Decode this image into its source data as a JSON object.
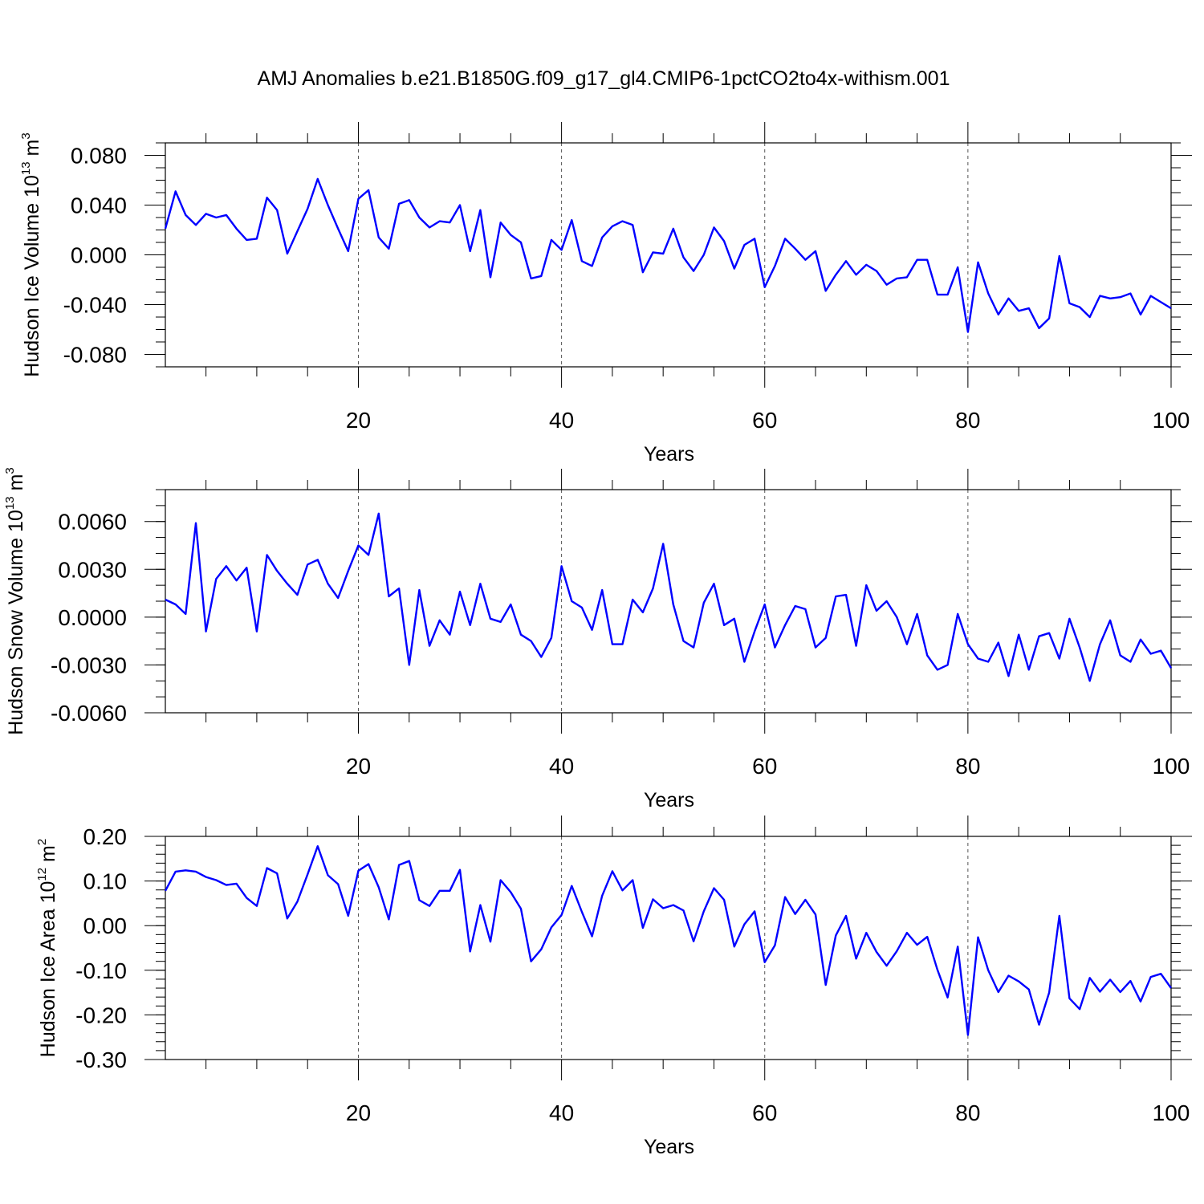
{
  "title": "AMJ Anomalies b.e21.B1850G.f09_g17_gl4.CMIP6-1pctCO2to4x-withism.001",
  "colors": {
    "series": "#0000ff",
    "frame": "#000000"
  },
  "chart_data": [
    {
      "type": "line",
      "ylabel": "Hudson Ice Volume 10",
      "ylabel_exp": "13",
      "ylabel_unit": " m",
      "ylabel_unit_exp": "3",
      "xlabel": "Years",
      "xlim": [
        1,
        100
      ],
      "ylim": [
        -0.09,
        0.09
      ],
      "x_ticks": [
        20,
        40,
        60,
        80,
        100
      ],
      "x_tick_labels": [
        "20",
        "40",
        "60",
        "80",
        "100"
      ],
      "y_ticks": [
        0.08,
        0.04,
        0.0,
        -0.04,
        -0.08
      ],
      "y_tick_labels": [
        "0.080",
        "0.040",
        "0.000",
        "-0.040",
        "-0.080"
      ],
      "y_minor_step": 0.01,
      "grid_x_dashed": [
        20,
        40,
        60,
        80
      ],
      "x": [
        1,
        2,
        3,
        4,
        5,
        6,
        7,
        8,
        9,
        10,
        11,
        12,
        13,
        14,
        15,
        16,
        17,
        18,
        19,
        20,
        21,
        22,
        23,
        24,
        25,
        26,
        27,
        28,
        29,
        30,
        31,
        32,
        33,
        34,
        35,
        36,
        37,
        38,
        39,
        40,
        41,
        42,
        43,
        44,
        45,
        46,
        47,
        48,
        49,
        50,
        51,
        52,
        53,
        54,
        55,
        56,
        57,
        58,
        59,
        60,
        61,
        62,
        63,
        64,
        65,
        66,
        67,
        68,
        69,
        70,
        71,
        72,
        73,
        74,
        75,
        76,
        77,
        78,
        79,
        80,
        81,
        82,
        83,
        84,
        85,
        86,
        87,
        88,
        89,
        90,
        91,
        92,
        93,
        94,
        95,
        96,
        97,
        98,
        99,
        100
      ],
      "values": [
        0.021,
        0.051,
        0.032,
        0.024,
        0.033,
        0.03,
        0.032,
        0.021,
        0.012,
        0.013,
        0.046,
        0.036,
        0.001,
        0.019,
        0.037,
        0.061,
        0.04,
        0.021,
        0.003,
        0.045,
        0.052,
        0.014,
        0.005,
        0.041,
        0.044,
        0.03,
        0.022,
        0.027,
        0.026,
        0.04,
        0.003,
        0.036,
        -0.018,
        0.026,
        0.016,
        0.01,
        -0.019,
        -0.017,
        0.012,
        0.004,
        0.028,
        -0.005,
        -0.009,
        0.014,
        0.023,
        0.027,
        0.024,
        -0.014,
        0.002,
        0.001,
        0.021,
        -0.002,
        -0.013,
        0.0,
        0.022,
        0.011,
        -0.011,
        0.008,
        0.013,
        -0.026,
        -0.009,
        0.013,
        0.005,
        -0.004,
        0.003,
        -0.029,
        -0.016,
        -0.005,
        -0.016,
        -0.008,
        -0.013,
        -0.024,
        -0.019,
        -0.018,
        -0.004,
        -0.004,
        -0.032,
        -0.032,
        -0.01,
        -0.062,
        -0.006,
        -0.031,
        -0.048,
        -0.035,
        -0.045,
        -0.043,
        -0.059,
        -0.051,
        -0.001,
        -0.039,
        -0.042,
        -0.05,
        -0.033,
        -0.035,
        -0.034,
        -0.031,
        -0.048,
        -0.033,
        -0.038,
        -0.043
      ]
    },
    {
      "type": "line",
      "ylabel": "Hudson Snow Volume 10",
      "ylabel_exp": "13",
      "ylabel_unit": " m",
      "ylabel_unit_exp": "3",
      "xlabel": "Years",
      "xlim": [
        1,
        100
      ],
      "ylim": [
        -0.006,
        0.008
      ],
      "x_ticks": [
        20,
        40,
        60,
        80,
        100
      ],
      "x_tick_labels": [
        "20",
        "40",
        "60",
        "80",
        "100"
      ],
      "y_ticks": [
        0.006,
        0.003,
        0.0,
        -0.003,
        -0.006
      ],
      "y_tick_labels": [
        "0.0060",
        "0.0030",
        "0.0000",
        "-0.0030",
        "-0.0060"
      ],
      "y_minor_step": 0.001,
      "grid_x_dashed": [
        20,
        40,
        60,
        80
      ],
      "x": [
        1,
        2,
        3,
        4,
        5,
        6,
        7,
        8,
        9,
        10,
        11,
        12,
        13,
        14,
        15,
        16,
        17,
        18,
        19,
        20,
        21,
        22,
        23,
        24,
        25,
        26,
        27,
        28,
        29,
        30,
        31,
        32,
        33,
        34,
        35,
        36,
        37,
        38,
        39,
        40,
        41,
        42,
        43,
        44,
        45,
        46,
        47,
        48,
        49,
        50,
        51,
        52,
        53,
        54,
        55,
        56,
        57,
        58,
        59,
        60,
        61,
        62,
        63,
        64,
        65,
        66,
        67,
        68,
        69,
        70,
        71,
        72,
        73,
        74,
        75,
        76,
        77,
        78,
        79,
        80,
        81,
        82,
        83,
        84,
        85,
        86,
        87,
        88,
        89,
        90,
        91,
        92,
        93,
        94,
        95,
        96,
        97,
        98,
        99,
        100
      ],
      "values": [
        0.0011,
        0.0008,
        0.0002,
        0.0059,
        -0.0009,
        0.0024,
        0.0032,
        0.0023,
        0.0031,
        -0.0009,
        0.0039,
        0.0029,
        0.0021,
        0.0014,
        0.0033,
        0.0036,
        0.0021,
        0.0012,
        0.0029,
        0.0045,
        0.0039,
        0.0065,
        0.0013,
        0.0018,
        -0.003,
        0.0017,
        -0.0018,
        -0.0002,
        -0.0011,
        0.0016,
        -0.0005,
        0.0021,
        -0.0001,
        -0.0003,
        0.0008,
        -0.0011,
        -0.0015,
        -0.0025,
        -0.0013,
        0.0032,
        0.001,
        0.0006,
        -0.0008,
        0.0017,
        -0.0017,
        -0.0017,
        0.0011,
        0.0003,
        0.0018,
        0.0046,
        0.0008,
        -0.0015,
        -0.0019,
        0.0009,
        0.0021,
        -0.0005,
        -0.0001,
        -0.0028,
        -0.0009,
        0.0008,
        -0.0019,
        -0.0005,
        0.0007,
        0.0005,
        -0.0019,
        -0.0013,
        0.0013,
        0.0014,
        -0.0018,
        0.002,
        0.0004,
        0.001,
        0.0,
        -0.0017,
        0.0002,
        -0.0024,
        -0.0033,
        -0.003,
        0.0002,
        -0.0017,
        -0.0026,
        -0.0028,
        -0.0016,
        -0.0037,
        -0.0011,
        -0.0033,
        -0.0012,
        -0.001,
        -0.0026,
        -0.0001,
        -0.0019,
        -0.004,
        -0.0017,
        -0.0002,
        -0.0024,
        -0.0028,
        -0.0014,
        -0.0023,
        -0.0021,
        -0.0032
      ]
    },
    {
      "type": "line",
      "ylabel": "Hudson Ice Area 10",
      "ylabel_exp": "12",
      "ylabel_unit": " m",
      "ylabel_unit_exp": "2",
      "xlabel": "Years",
      "xlim": [
        1,
        100
      ],
      "ylim": [
        -0.3,
        0.2
      ],
      "x_ticks": [
        20,
        40,
        60,
        80,
        100
      ],
      "x_tick_labels": [
        "20",
        "40",
        "60",
        "80",
        "100"
      ],
      "y_ticks": [
        0.2,
        0.1,
        0.0,
        -0.1,
        -0.2,
        -0.3
      ],
      "y_tick_labels": [
        "0.20",
        "0.10",
        "0.00",
        "-0.10",
        "-0.20",
        "-0.30"
      ],
      "y_minor_step": 0.02,
      "grid_x_dashed": [
        20,
        40,
        60,
        80
      ],
      "x": [
        1,
        2,
        3,
        4,
        5,
        6,
        7,
        8,
        9,
        10,
        11,
        12,
        13,
        14,
        15,
        16,
        17,
        18,
        19,
        20,
        21,
        22,
        23,
        24,
        25,
        26,
        27,
        28,
        29,
        30,
        31,
        32,
        33,
        34,
        35,
        36,
        37,
        38,
        39,
        40,
        41,
        42,
        43,
        44,
        45,
        46,
        47,
        48,
        49,
        50,
        51,
        52,
        53,
        54,
        55,
        56,
        57,
        58,
        59,
        60,
        61,
        62,
        63,
        64,
        65,
        66,
        67,
        68,
        69,
        70,
        71,
        72,
        73,
        74,
        75,
        76,
        77,
        78,
        79,
        80,
        81,
        82,
        83,
        84,
        85,
        86,
        87,
        88,
        89,
        90,
        91,
        92,
        93,
        94,
        95,
        96,
        97,
        98,
        99,
        100
      ],
      "values": [
        0.078,
        0.121,
        0.124,
        0.121,
        0.109,
        0.102,
        0.091,
        0.094,
        0.062,
        0.044,
        0.129,
        0.117,
        0.016,
        0.054,
        0.115,
        0.178,
        0.113,
        0.093,
        0.022,
        0.123,
        0.138,
        0.086,
        0.014,
        0.136,
        0.145,
        0.057,
        0.044,
        0.078,
        0.078,
        0.125,
        -0.058,
        0.046,
        -0.036,
        0.102,
        0.075,
        0.038,
        -0.08,
        -0.053,
        -0.004,
        0.024,
        0.089,
        0.031,
        -0.024,
        0.067,
        0.122,
        0.079,
        0.102,
        -0.005,
        0.059,
        0.039,
        0.046,
        0.034,
        -0.035,
        0.032,
        0.084,
        0.058,
        -0.047,
        0.003,
        0.032,
        -0.082,
        -0.044,
        0.064,
        0.026,
        0.058,
        0.025,
        -0.133,
        -0.022,
        0.022,
        -0.074,
        -0.016,
        -0.059,
        -0.09,
        -0.057,
        -0.016,
        -0.043,
        -0.025,
        -0.099,
        -0.161,
        -0.047,
        -0.245,
        -0.026,
        -0.1,
        -0.149,
        -0.112,
        -0.125,
        -0.143,
        -0.222,
        -0.15,
        0.022,
        -0.163,
        -0.187,
        -0.117,
        -0.148,
        -0.121,
        -0.149,
        -0.124,
        -0.17,
        -0.115,
        -0.108,
        -0.14
      ]
    }
  ]
}
